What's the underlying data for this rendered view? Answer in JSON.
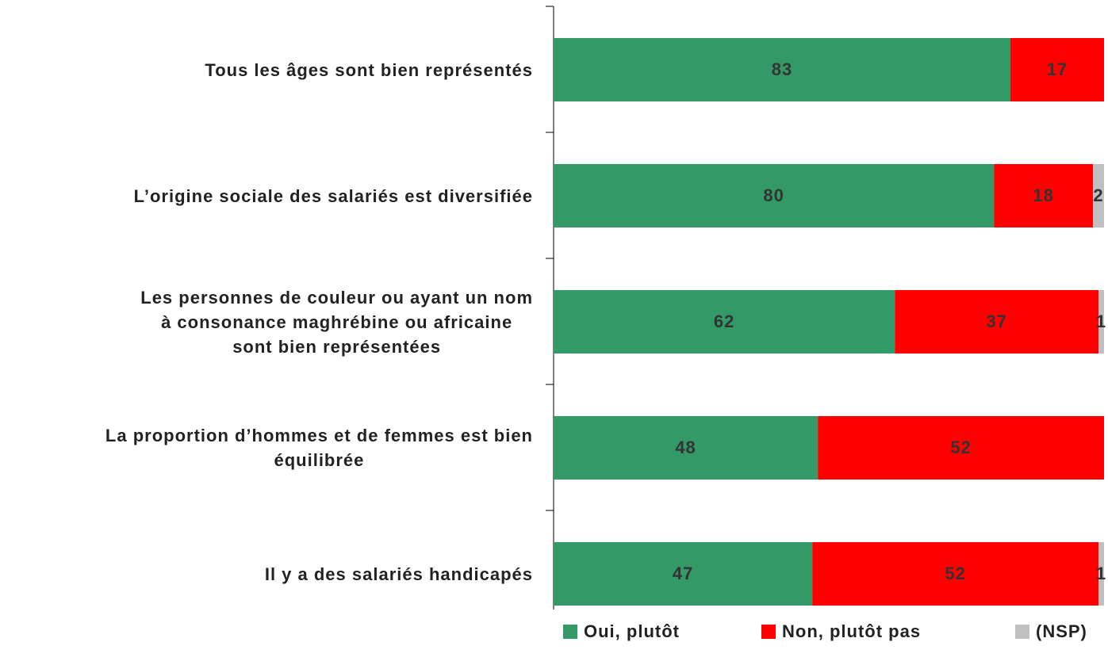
{
  "chart_data": {
    "type": "stacked_barh",
    "categories": [
      "Tous les âges sont bien représentés",
      "L’origine sociale des salariés est diversifiée",
      "Les personnes de couleur ou ayant un nom\nà consonance maghrébine ou africaine\nsont bien représentées",
      "La proportion d’hommes et de femmes est bien\néquilibrée",
      "Il y a des salariés handicapés"
    ],
    "series": [
      {
        "name": "Oui, plutôt",
        "color": "#339966",
        "values": [
          83,
          80,
          62,
          48,
          47
        ]
      },
      {
        "name": "Non, plutôt pas",
        "color": "#ff0000",
        "values": [
          17,
          18,
          37,
          52,
          52
        ]
      },
      {
        "name": "(NSP)",
        "color": "#c0c0c0",
        "values": [
          null,
          2,
          1,
          null,
          1
        ]
      }
    ],
    "xlim": [
      0,
      100
    ],
    "legend": "bottom"
  }
}
